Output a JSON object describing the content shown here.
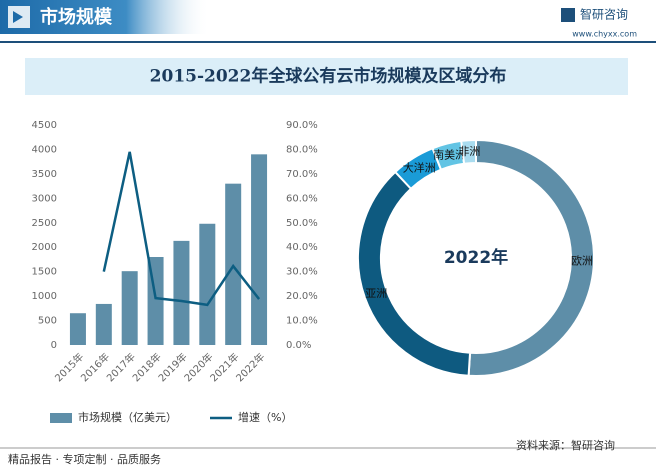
{
  "header": {
    "title": "市场规模",
    "brand": "智研咨询",
    "url": "www.chyxx.com",
    "banner": "2015-2022年全球公有云市场规模及区域分布"
  },
  "chart_data": [
    {
      "type": "combo",
      "categories": [
        "2015年",
        "2016年",
        "2017年",
        "2018年",
        "2019年",
        "2020年",
        "2021年",
        "2022年"
      ],
      "series": [
        {
          "name": "市场规模（亿美元）",
          "type": "bar",
          "color": "#5e8ea8",
          "values": [
            650,
            840,
            1510,
            1800,
            2130,
            2480,
            3300,
            3900
          ]
        },
        {
          "name": "增速（%）",
          "type": "line",
          "axis": "y2",
          "color": "#0d5e82",
          "values": [
            null,
            30,
            79,
            19.2,
            18,
            16.4,
            32.3,
            18.8
          ]
        }
      ],
      "ylim": [
        0,
        4500
      ],
      "yticks": [
        0,
        500,
        1000,
        1500,
        2000,
        2500,
        3000,
        3500,
        4000,
        4500
      ],
      "y2lim": [
        0,
        90
      ],
      "y2ticks": [
        {
          "value": 0,
          "label": "0.0%"
        },
        {
          "value": 10,
          "label": "10.0%"
        },
        {
          "value": 20,
          "label": "20.0%"
        },
        {
          "value": 30,
          "label": "30.0%"
        },
        {
          "value": 40,
          "label": "40.0%"
        },
        {
          "value": 50,
          "label": "50.0%"
        },
        {
          "value": 60,
          "label": "60.0%"
        },
        {
          "value": 70,
          "label": "70.0%"
        },
        {
          "value": 80,
          "label": "80.0%"
        },
        {
          "value": 90,
          "label": "90.0%"
        }
      ],
      "grid": false
    },
    {
      "type": "donut",
      "center_label": "2022年",
      "categories": [
        "欧洲",
        "亚洲",
        "大洋洲",
        "南美洲",
        "非洲"
      ],
      "values": [
        51,
        37,
        6,
        4,
        2
      ],
      "colors": [
        "#5e8ea8",
        "#0e5a80",
        "#1a9bd7",
        "#62c4e4",
        "#a9dcef"
      ]
    }
  ],
  "footer": {
    "left": "精品报告 · 专项定制 · 品质服务",
    "source": "资料来源：智研咨询"
  }
}
